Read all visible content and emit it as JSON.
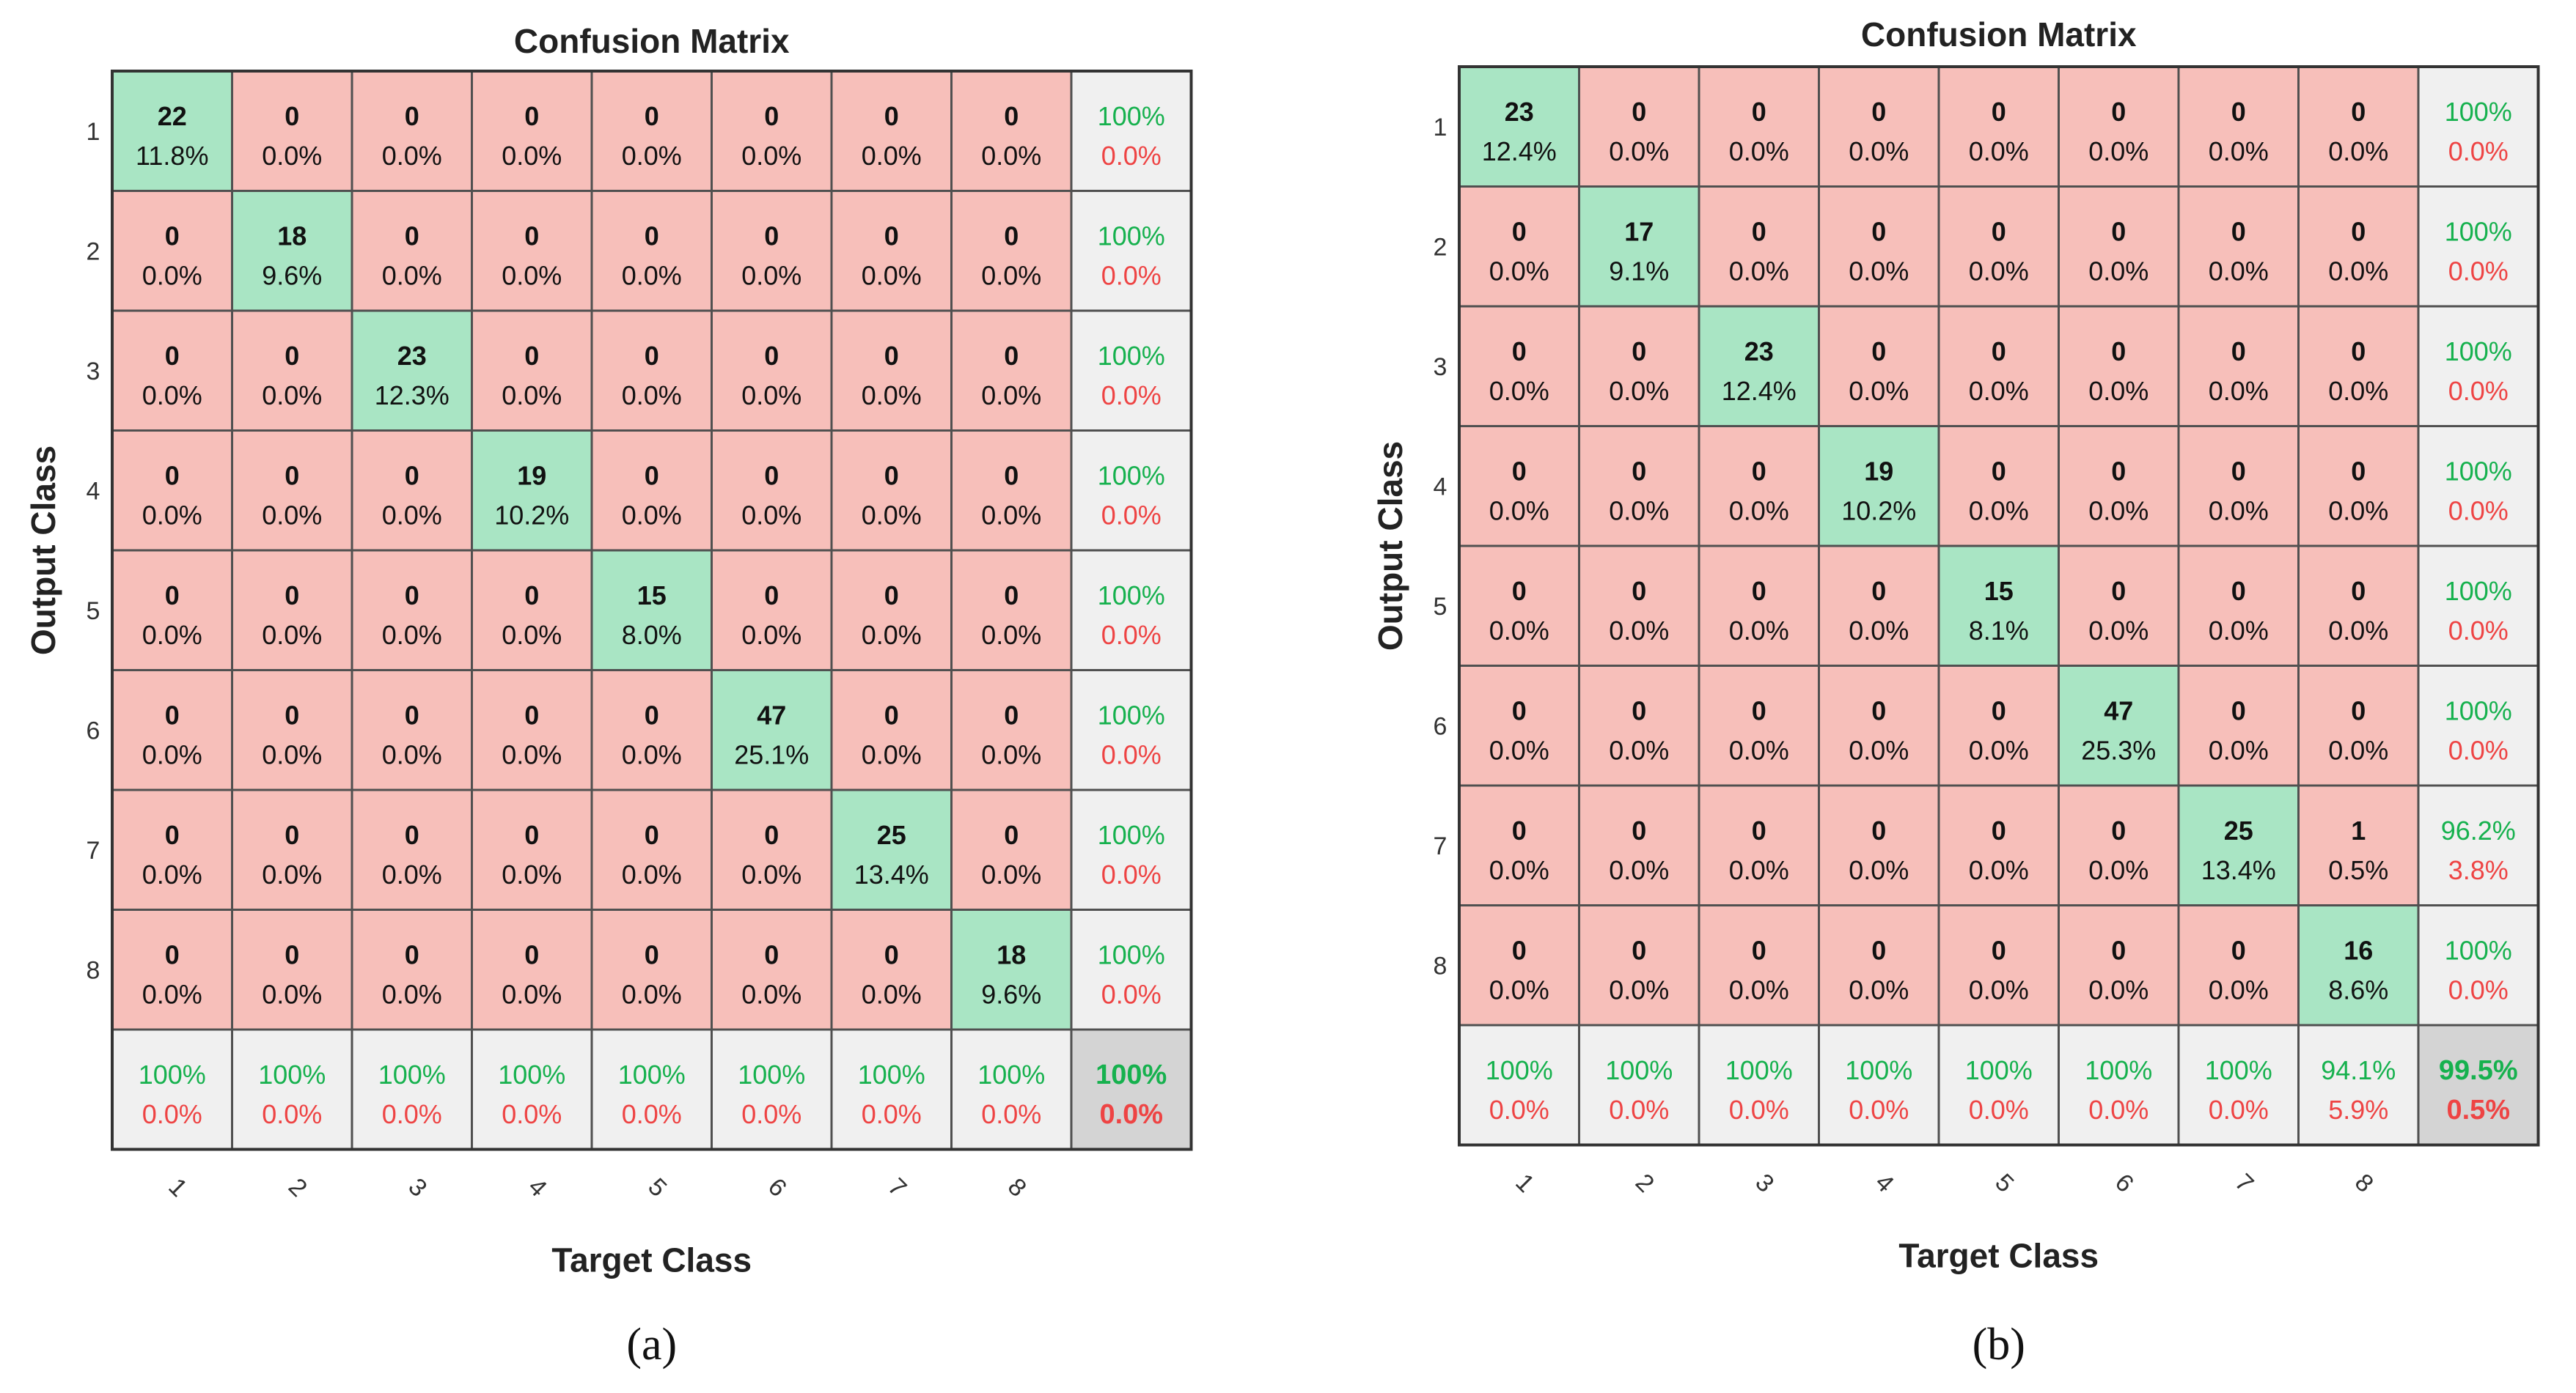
{
  "colors": {
    "correct_cell": "#a9e5c4",
    "wrong_cell": "#f7bfba",
    "summary_cell": "#f0f0f0",
    "overall_cell": "#d4d4d4",
    "good_text": "#16b14e",
    "bad_text": "#ee4444",
    "grid_line": "#505050",
    "text": "#111111"
  },
  "chart_data": [
    {
      "type": "heatmap",
      "panel_label": "(a)",
      "title": "Confusion Matrix",
      "xlabel": "Target Class",
      "ylabel": "Output Class",
      "row_labels": [
        "1",
        "2",
        "3",
        "4",
        "5",
        "6",
        "7",
        "8"
      ],
      "col_labels": [
        "1",
        "2",
        "3",
        "4",
        "5",
        "6",
        "7",
        "8"
      ],
      "counts": [
        [
          22,
          0,
          0,
          0,
          0,
          0,
          0,
          0
        ],
        [
          0,
          18,
          0,
          0,
          0,
          0,
          0,
          0
        ],
        [
          0,
          0,
          23,
          0,
          0,
          0,
          0,
          0
        ],
        [
          0,
          0,
          0,
          19,
          0,
          0,
          0,
          0
        ],
        [
          0,
          0,
          0,
          0,
          15,
          0,
          0,
          0
        ],
        [
          0,
          0,
          0,
          0,
          0,
          47,
          0,
          0
        ],
        [
          0,
          0,
          0,
          0,
          0,
          0,
          25,
          0
        ],
        [
          0,
          0,
          0,
          0,
          0,
          0,
          0,
          18
        ]
      ],
      "percents": [
        [
          "11.8%",
          "0.0%",
          "0.0%",
          "0.0%",
          "0.0%",
          "0.0%",
          "0.0%",
          "0.0%"
        ],
        [
          "0.0%",
          "9.6%",
          "0.0%",
          "0.0%",
          "0.0%",
          "0.0%",
          "0.0%",
          "0.0%"
        ],
        [
          "0.0%",
          "0.0%",
          "12.3%",
          "0.0%",
          "0.0%",
          "0.0%",
          "0.0%",
          "0.0%"
        ],
        [
          "0.0%",
          "0.0%",
          "0.0%",
          "10.2%",
          "0.0%",
          "0.0%",
          "0.0%",
          "0.0%"
        ],
        [
          "0.0%",
          "0.0%",
          "0.0%",
          "0.0%",
          "8.0%",
          "0.0%",
          "0.0%",
          "0.0%"
        ],
        [
          "0.0%",
          "0.0%",
          "0.0%",
          "0.0%",
          "0.0%",
          "25.1%",
          "0.0%",
          "0.0%"
        ],
        [
          "0.0%",
          "0.0%",
          "0.0%",
          "0.0%",
          "0.0%",
          "0.0%",
          "13.4%",
          "0.0%"
        ],
        [
          "0.0%",
          "0.0%",
          "0.0%",
          "0.0%",
          "0.0%",
          "0.0%",
          "0.0%",
          "9.6%"
        ]
      ],
      "row_summary": [
        [
          "100%",
          "0.0%"
        ],
        [
          "100%",
          "0.0%"
        ],
        [
          "100%",
          "0.0%"
        ],
        [
          "100%",
          "0.0%"
        ],
        [
          "100%",
          "0.0%"
        ],
        [
          "100%",
          "0.0%"
        ],
        [
          "100%",
          "0.0%"
        ],
        [
          "100%",
          "0.0%"
        ]
      ],
      "col_summary": [
        [
          "100%",
          "0.0%"
        ],
        [
          "100%",
          "0.0%"
        ],
        [
          "100%",
          "0.0%"
        ],
        [
          "100%",
          "0.0%"
        ],
        [
          "100%",
          "0.0%"
        ],
        [
          "100%",
          "0.0%"
        ],
        [
          "100%",
          "0.0%"
        ],
        [
          "100%",
          "0.0%"
        ]
      ],
      "overall": [
        "100%",
        "0.0%"
      ]
    },
    {
      "type": "heatmap",
      "panel_label": "(b)",
      "title": "Confusion Matrix",
      "xlabel": "Target Class",
      "ylabel": "Output Class",
      "row_labels": [
        "1",
        "2",
        "3",
        "4",
        "5",
        "6",
        "7",
        "8"
      ],
      "col_labels": [
        "1",
        "2",
        "3",
        "4",
        "5",
        "6",
        "7",
        "8"
      ],
      "counts": [
        [
          23,
          0,
          0,
          0,
          0,
          0,
          0,
          0
        ],
        [
          0,
          17,
          0,
          0,
          0,
          0,
          0,
          0
        ],
        [
          0,
          0,
          23,
          0,
          0,
          0,
          0,
          0
        ],
        [
          0,
          0,
          0,
          19,
          0,
          0,
          0,
          0
        ],
        [
          0,
          0,
          0,
          0,
          15,
          0,
          0,
          0
        ],
        [
          0,
          0,
          0,
          0,
          0,
          47,
          0,
          0
        ],
        [
          0,
          0,
          0,
          0,
          0,
          0,
          25,
          1
        ],
        [
          0,
          0,
          0,
          0,
          0,
          0,
          0,
          16
        ]
      ],
      "percents": [
        [
          "12.4%",
          "0.0%",
          "0.0%",
          "0.0%",
          "0.0%",
          "0.0%",
          "0.0%",
          "0.0%"
        ],
        [
          "0.0%",
          "9.1%",
          "0.0%",
          "0.0%",
          "0.0%",
          "0.0%",
          "0.0%",
          "0.0%"
        ],
        [
          "0.0%",
          "0.0%",
          "12.4%",
          "0.0%",
          "0.0%",
          "0.0%",
          "0.0%",
          "0.0%"
        ],
        [
          "0.0%",
          "0.0%",
          "0.0%",
          "10.2%",
          "0.0%",
          "0.0%",
          "0.0%",
          "0.0%"
        ],
        [
          "0.0%",
          "0.0%",
          "0.0%",
          "0.0%",
          "8.1%",
          "0.0%",
          "0.0%",
          "0.0%"
        ],
        [
          "0.0%",
          "0.0%",
          "0.0%",
          "0.0%",
          "0.0%",
          "25.3%",
          "0.0%",
          "0.0%"
        ],
        [
          "0.0%",
          "0.0%",
          "0.0%",
          "0.0%",
          "0.0%",
          "0.0%",
          "13.4%",
          "0.5%"
        ],
        [
          "0.0%",
          "0.0%",
          "0.0%",
          "0.0%",
          "0.0%",
          "0.0%",
          "0.0%",
          "8.6%"
        ]
      ],
      "row_summary": [
        [
          "100%",
          "0.0%"
        ],
        [
          "100%",
          "0.0%"
        ],
        [
          "100%",
          "0.0%"
        ],
        [
          "100%",
          "0.0%"
        ],
        [
          "100%",
          "0.0%"
        ],
        [
          "100%",
          "0.0%"
        ],
        [
          "96.2%",
          "3.8%"
        ],
        [
          "100%",
          "0.0%"
        ]
      ],
      "col_summary": [
        [
          "100%",
          "0.0%"
        ],
        [
          "100%",
          "0.0%"
        ],
        [
          "100%",
          "0.0%"
        ],
        [
          "100%",
          "0.0%"
        ],
        [
          "100%",
          "0.0%"
        ],
        [
          "100%",
          "0.0%"
        ],
        [
          "100%",
          "0.0%"
        ],
        [
          "94.1%",
          "5.9%"
        ]
      ],
      "overall": [
        "99.5%",
        "0.5%"
      ]
    }
  ]
}
